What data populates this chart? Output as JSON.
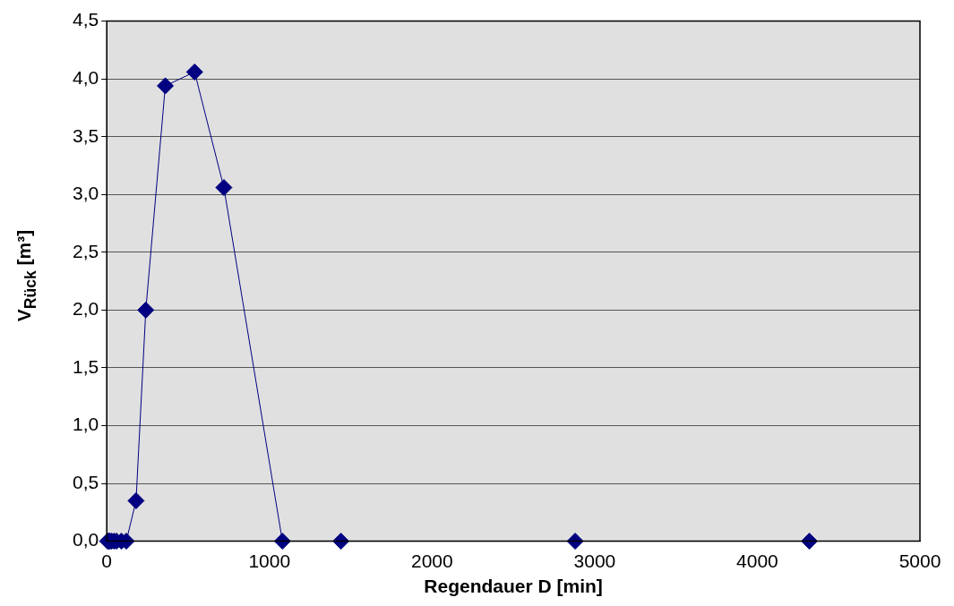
{
  "chart_data": {
    "type": "line",
    "xlabel": "Regendauer D [min]",
    "ylabel": "V$_{Rück}$  [m³]",
    "x": [
      5,
      10,
      15,
      20,
      30,
      45,
      60,
      90,
      120,
      180,
      240,
      360,
      540,
      720,
      1080,
      1440,
      2880,
      4320
    ],
    "series": [
      {
        "color": "#000080",
        "values": [
          0,
          0,
          0,
          0,
          0,
          0,
          0,
          0,
          0,
          0.35,
          2.0,
          3.94,
          4.06,
          3.06,
          0,
          0,
          0,
          0
        ]
      }
    ],
    "xlim": [
      0,
      5000
    ],
    "xticks": [
      0,
      1000,
      2000,
      3000,
      4000,
      5000
    ],
    "ylim": [
      0,
      4.5
    ],
    "yticks": [
      {
        "value": 0,
        "label": "0,0"
      },
      {
        "value": 0.5,
        "label": "0,5"
      },
      {
        "value": 1,
        "label": "1,0"
      },
      {
        "value": 1.5,
        "label": "1,5"
      },
      {
        "value": 2,
        "label": "2,0"
      },
      {
        "value": 2.5,
        "label": "2,5"
      },
      {
        "value": 3,
        "label": "3,0"
      },
      {
        "value": 3.5,
        "label": "3,5"
      },
      {
        "value": 4,
        "label": "4,0"
      },
      {
        "value": 4.5,
        "label": "4,5"
      }
    ],
    "grid": "y",
    "legend": false,
    "marker": "diamond",
    "line_style": "solid"
  }
}
